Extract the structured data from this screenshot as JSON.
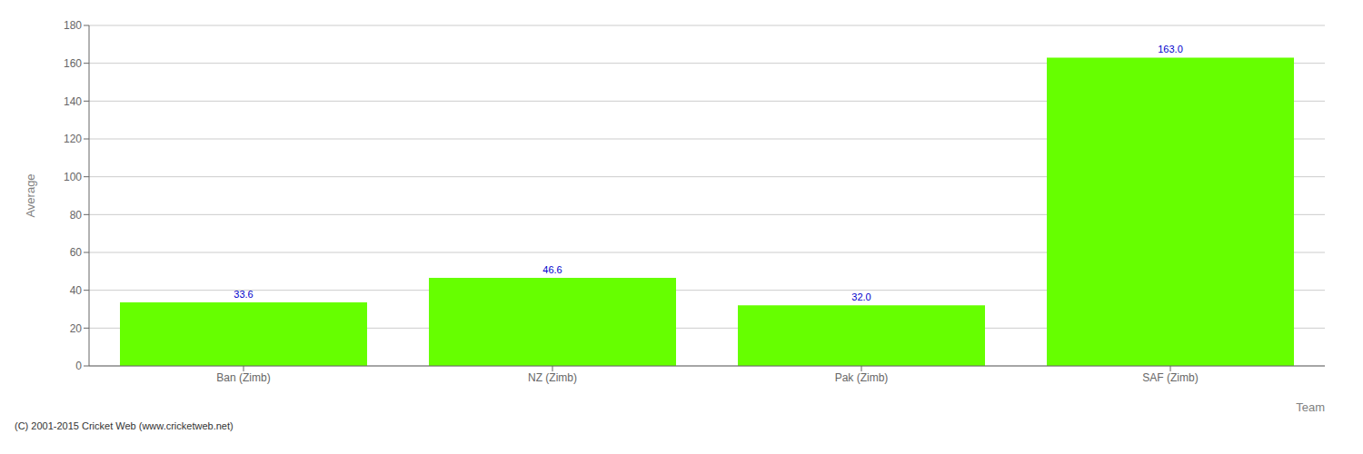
{
  "chart_data": {
    "type": "bar",
    "categories": [
      "Ban (Zimb)",
      "NZ (Zimb)",
      "Pak (Zimb)",
      "SAF (Zimb)"
    ],
    "values": [
      33.6,
      46.6,
      32.0,
      163.0
    ],
    "value_labels": [
      "33.6",
      "46.6",
      "32.0",
      "163.0"
    ],
    "color": "#66ff00",
    "xlabel": "Team",
    "ylabel": "Average",
    "ylim": [
      0,
      180
    ],
    "yticks": [
      0,
      20,
      40,
      60,
      80,
      100,
      120,
      140,
      160,
      180
    ],
    "grid": true,
    "data_labels": true,
    "annotations": [
      "(C) 2001-2015 Cricket Web (www.cricketweb.net)"
    ]
  }
}
